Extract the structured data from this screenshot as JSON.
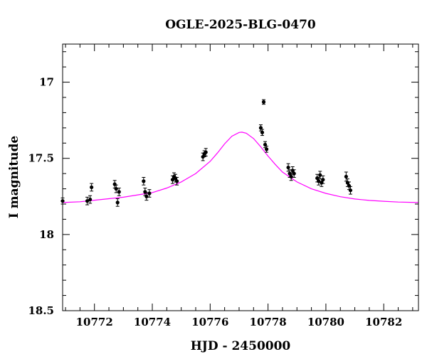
{
  "chart_data": {
    "type": "scatter",
    "title": "OGLE-2025-BLG-0470",
    "xlabel": "HJD - 2450000",
    "ylabel": "I magnitude",
    "xlim": [
      10770.9,
      10783.2
    ],
    "ylim": [
      18.5,
      16.75
    ],
    "y_inverted": true,
    "x_major_ticks": [
      10772,
      10774,
      10776,
      10778,
      10780,
      10782
    ],
    "x_tick_labels": [
      "10772",
      "10774",
      "10776",
      "10778",
      "10780",
      "10782"
    ],
    "y_major_ticks": [
      17,
      17.5,
      18,
      18.5
    ],
    "y_tick_labels": [
      "17",
      "17.5",
      "18",
      "18.5"
    ],
    "x_minor_step": 0.5,
    "y_minor_step": 0.1,
    "grid": false,
    "legend": "none",
    "model_color": "#ff00ff",
    "marker_color": "#000000",
    "model": {
      "x": [
        10770.9,
        10771.5,
        10772,
        10772.5,
        10773,
        10773.5,
        10774,
        10774.5,
        10775,
        10775.5,
        10776,
        10776.25,
        10776.5,
        10776.75,
        10777,
        10777.1,
        10777.25,
        10777.5,
        10777.75,
        10778,
        10778.25,
        10778.5,
        10779,
        10779.5,
        10780,
        10780.5,
        10781,
        10781.5,
        10782,
        10782.5,
        10783.2
      ],
      "y": [
        17.79,
        17.785,
        17.775,
        17.765,
        17.755,
        17.74,
        17.725,
        17.695,
        17.655,
        17.6,
        17.52,
        17.465,
        17.405,
        17.355,
        17.33,
        17.328,
        17.335,
        17.37,
        17.425,
        17.485,
        17.54,
        17.59,
        17.655,
        17.7,
        17.73,
        17.752,
        17.767,
        17.776,
        17.782,
        17.787,
        17.79
      ]
    },
    "points": [
      {
        "x": 10770.9,
        "y": 17.78,
        "err": 0.02
      },
      {
        "x": 10771.75,
        "y": 17.78,
        "err": 0.025
      },
      {
        "x": 10771.85,
        "y": 17.77,
        "err": 0.025
      },
      {
        "x": 10771.9,
        "y": 17.69,
        "err": 0.025
      },
      {
        "x": 10772.7,
        "y": 17.67,
        "err": 0.025
      },
      {
        "x": 10772.75,
        "y": 17.7,
        "err": 0.025
      },
      {
        "x": 10772.8,
        "y": 17.79,
        "err": 0.025
      },
      {
        "x": 10772.85,
        "y": 17.72,
        "err": 0.025
      },
      {
        "x": 10773.7,
        "y": 17.65,
        "err": 0.025
      },
      {
        "x": 10773.75,
        "y": 17.72,
        "err": 0.025
      },
      {
        "x": 10773.8,
        "y": 17.75,
        "err": 0.025
      },
      {
        "x": 10773.9,
        "y": 17.73,
        "err": 0.025
      },
      {
        "x": 10774.7,
        "y": 17.64,
        "err": 0.025
      },
      {
        "x": 10774.75,
        "y": 17.62,
        "err": 0.025
      },
      {
        "x": 10774.8,
        "y": 17.63,
        "err": 0.025
      },
      {
        "x": 10774.85,
        "y": 17.65,
        "err": 0.025
      },
      {
        "x": 10775.75,
        "y": 17.49,
        "err": 0.025
      },
      {
        "x": 10775.8,
        "y": 17.47,
        "err": 0.02
      },
      {
        "x": 10775.85,
        "y": 17.46,
        "err": 0.025
      },
      {
        "x": 10777.75,
        "y": 17.3,
        "err": 0.02
      },
      {
        "x": 10777.8,
        "y": 17.33,
        "err": 0.02
      },
      {
        "x": 10777.85,
        "y": 17.13,
        "err": 0.015
      },
      {
        "x": 10777.9,
        "y": 17.41,
        "err": 0.02
      },
      {
        "x": 10777.95,
        "y": 17.44,
        "err": 0.02
      },
      {
        "x": 10778.7,
        "y": 17.56,
        "err": 0.025
      },
      {
        "x": 10778.75,
        "y": 17.6,
        "err": 0.025
      },
      {
        "x": 10778.8,
        "y": 17.62,
        "err": 0.025
      },
      {
        "x": 10778.85,
        "y": 17.58,
        "err": 0.025
      },
      {
        "x": 10778.9,
        "y": 17.6,
        "err": 0.025
      },
      {
        "x": 10779.7,
        "y": 17.63,
        "err": 0.025
      },
      {
        "x": 10779.75,
        "y": 17.65,
        "err": 0.025
      },
      {
        "x": 10779.8,
        "y": 17.61,
        "err": 0.025
      },
      {
        "x": 10779.85,
        "y": 17.66,
        "err": 0.025
      },
      {
        "x": 10779.9,
        "y": 17.64,
        "err": 0.025
      },
      {
        "x": 10780.7,
        "y": 17.62,
        "err": 0.03
      },
      {
        "x": 10780.75,
        "y": 17.66,
        "err": 0.025
      },
      {
        "x": 10780.8,
        "y": 17.68,
        "err": 0.025
      },
      {
        "x": 10780.85,
        "y": 17.71,
        "err": 0.025
      }
    ]
  }
}
